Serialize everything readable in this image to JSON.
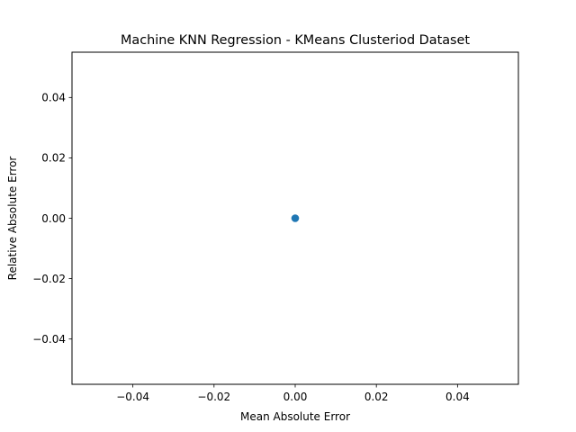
{
  "chart_data": {
    "type": "scatter",
    "title": "Machine KNN Regression - KMeans Clusteriod Dataset",
    "xlabel": "Mean Absolute Error",
    "ylabel": "Relative Absolute Error",
    "xlim": [
      -0.055,
      0.055
    ],
    "ylim": [
      -0.055,
      0.055
    ],
    "x_ticks": [
      -0.04,
      -0.02,
      0.0,
      0.02,
      0.04
    ],
    "x_tick_labels": [
      "−0.04",
      "−0.02",
      "0.00",
      "0.02",
      "0.04"
    ],
    "y_ticks": [
      -0.04,
      -0.02,
      0.0,
      0.02,
      0.04
    ],
    "y_tick_labels": [
      "−0.04",
      "−0.02",
      "0.00",
      "0.02",
      "0.04"
    ],
    "grid": false,
    "series": [
      {
        "x": [
          0.0
        ],
        "y": [
          0.0
        ],
        "color": "#1f77b4"
      }
    ]
  }
}
